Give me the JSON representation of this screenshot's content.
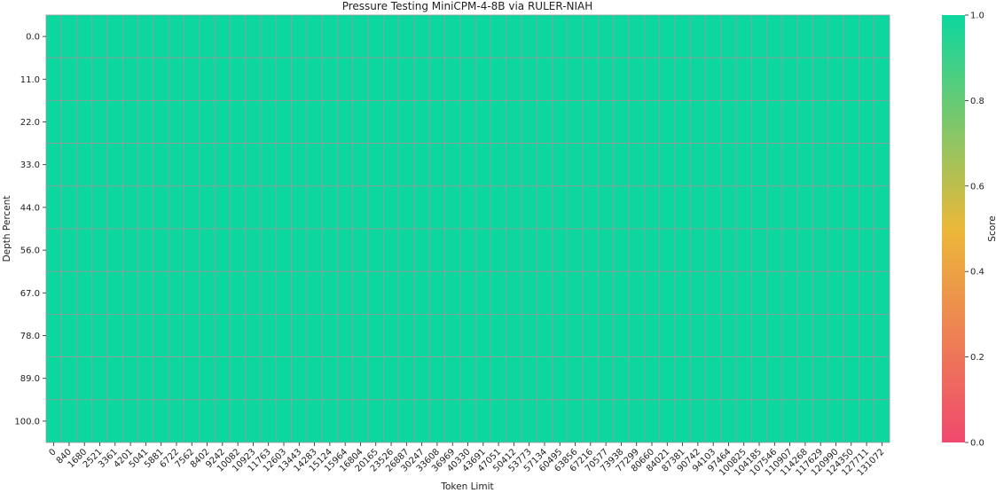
{
  "chart_data": {
    "type": "heatmap",
    "title": "Pressure Testing MiniCPM-4-8B via RULER-NIAH",
    "xlabel": "Token Limit",
    "ylabel": "Depth Percent",
    "x": [
      "0",
      "840",
      "1680",
      "2521",
      "3361",
      "4201",
      "5041",
      "5881",
      "6722",
      "7562",
      "8402",
      "9242",
      "10082",
      "10923",
      "11763",
      "12603",
      "13443",
      "14283",
      "15124",
      "15964",
      "16804",
      "20165",
      "23526",
      "26887",
      "30247",
      "33608",
      "36969",
      "40330",
      "43691",
      "47051",
      "50412",
      "53773",
      "57134",
      "60495",
      "63856",
      "67216",
      "70577",
      "73938",
      "77299",
      "80660",
      "84021",
      "87381",
      "90742",
      "94103",
      "97464",
      "100825",
      "104185",
      "107546",
      "110907",
      "114268",
      "117629",
      "120990",
      "124350",
      "127711",
      "131072"
    ],
    "y": [
      "0.0",
      "11.0",
      "22.0",
      "33.0",
      "44.0",
      "56.0",
      "67.0",
      "78.0",
      "89.0",
      "100.0"
    ],
    "value_fill": 1.0,
    "colorbar": {
      "label": "Score",
      "range": [
        0,
        1
      ],
      "ticks": [
        "0.0",
        "0.2",
        "0.4",
        "0.6",
        "0.8",
        "1.0"
      ],
      "colors": [
        "#F0496E",
        "#EBB839",
        "#0CD79F"
      ]
    },
    "grid_color": "#9a9a9a"
  }
}
